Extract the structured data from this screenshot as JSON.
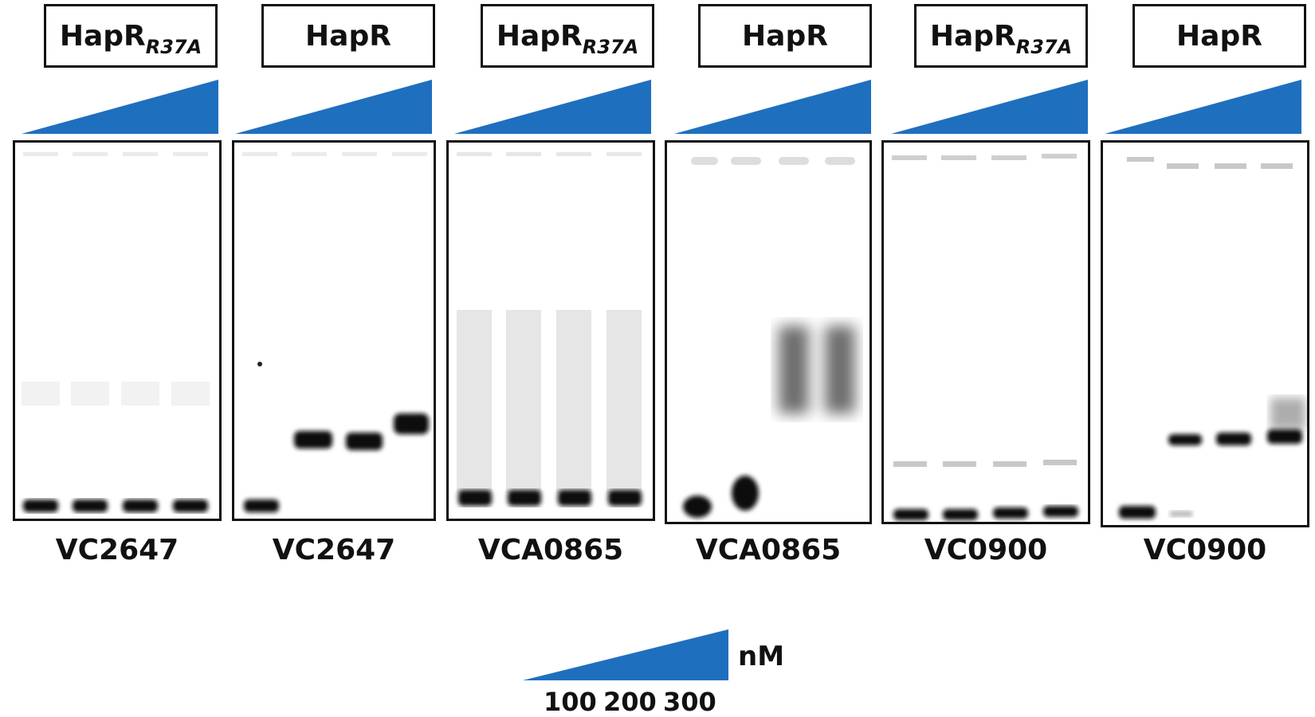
{
  "panels": [
    {
      "protein": "HapR",
      "mutation": "R37A",
      "dna": "VC2647"
    },
    {
      "protein": "HapR",
      "mutation": "",
      "dna": "VC2647"
    },
    {
      "protein": "HapR",
      "mutation": "R37A",
      "dna": "VCA0865"
    },
    {
      "protein": "HapR",
      "mutation": "",
      "dna": "VCA0865"
    },
    {
      "protein": "HapR",
      "mutation": "R37A",
      "dna": "VC0900"
    },
    {
      "protein": "HapR",
      "mutation": "",
      "dna": "VC0900"
    }
  ],
  "legend": {
    "unit": "nM",
    "concentrations": [
      "100",
      "200",
      "300"
    ]
  },
  "colors": {
    "wedge": "#1f6fbf",
    "frame": "#111111",
    "band": "#111111"
  }
}
